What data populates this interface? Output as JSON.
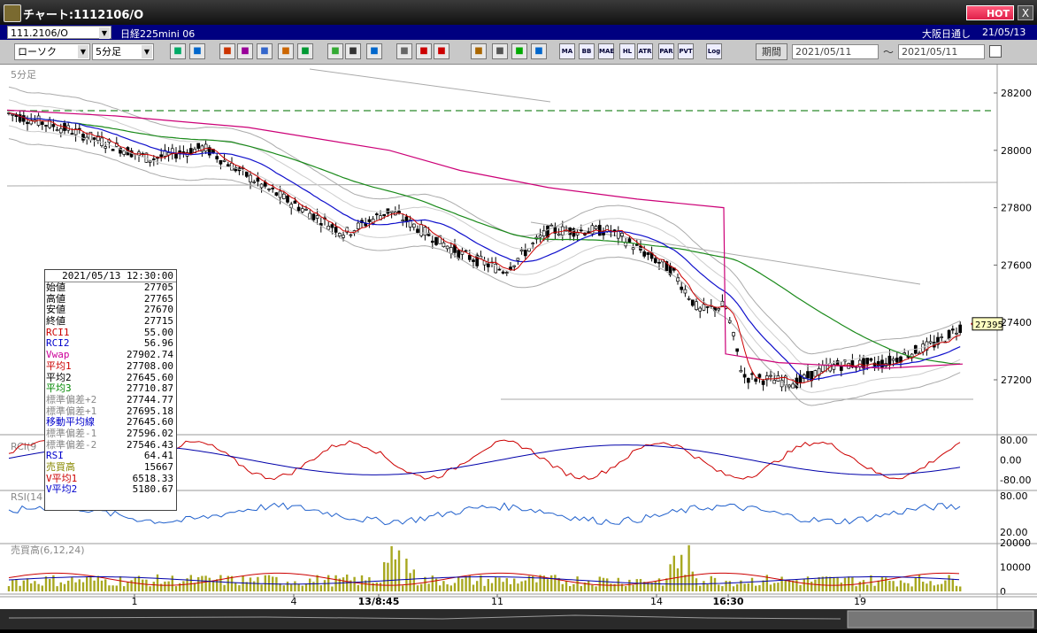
{
  "window": {
    "title": "チャート:1112106/O",
    "hot_label": "HOT",
    "close_label": "X"
  },
  "info": {
    "symbol": "111.2106/O",
    "instrument": "日経225mini 06",
    "session": "大阪日通し",
    "date": "21/05/13"
  },
  "toolbar": {
    "chart_type": "ローソク",
    "interval": "5分足",
    "icons": [
      "zoom-icon",
      "grid-icon",
      "download-icon",
      "scan-icon",
      "chart-icon",
      "bars-icon",
      "bookmark-icon",
      "draw-icon",
      "cursor-icon",
      "undo-icon",
      "candle-icon",
      "candle2-icon",
      "all-icon",
      "settings-icon",
      "wrench-icon",
      "palette-icon",
      "grid-settings-icon"
    ],
    "indicators": [
      "MA",
      "BB",
      "HL",
      "ATR",
      "PAR",
      "PVT",
      "Log"
    ],
    "period_label": "期間",
    "date_from": "2021/05/11",
    "date_to": "2021/05/11",
    "range_sep": "～"
  },
  "chart": {
    "main_label": "5分足",
    "price_ticks": [
      "28200",
      "28000",
      "27800",
      "27600",
      "27400",
      "27200"
    ],
    "current_price": "27395",
    "rci_label": "RCI(9",
    "rci_ticks": [
      "80.00",
      "0.00",
      "-80.00"
    ],
    "rsi_label": "RSI(14",
    "rsi_ticks": [
      "80.00",
      "20.00"
    ],
    "vol_label": "売買高(6,12,24)",
    "vol_ticks": [
      "20000",
      "10000",
      "0"
    ],
    "x_ticks": [
      "1",
      "4",
      "13/8:45",
      "11",
      "14",
      "16:30",
      "19"
    ]
  },
  "databox": {
    "datetime": "2021/05/13  12:30:00",
    "rows": [
      {
        "k": "始値",
        "v": "27705",
        "color": "#000000"
      },
      {
        "k": "高値",
        "v": "27765",
        "color": "#000000"
      },
      {
        "k": "安値",
        "v": "27670",
        "color": "#000000"
      },
      {
        "k": "終値",
        "v": "27715",
        "color": "#000000"
      },
      {
        "k": "RCI1",
        "v": "55.00",
        "color": "#cc0000"
      },
      {
        "k": "RCI2",
        "v": "56.96",
        "color": "#0000cc"
      },
      {
        "k": "Vwap",
        "v": "27902.74",
        "color": "#cc0099"
      },
      {
        "k": "平均1",
        "v": "27708.00",
        "color": "#cc0000"
      },
      {
        "k": "平均2",
        "v": "27645.60",
        "color": "#000000"
      },
      {
        "k": "平均3",
        "v": "27710.87",
        "color": "#008800"
      },
      {
        "k": "標準偏差+2",
        "v": "27744.77",
        "color": "#888888"
      },
      {
        "k": "標準偏差+1",
        "v": "27695.18",
        "color": "#888888"
      },
      {
        "k": "移動平均線",
        "v": "27645.60",
        "color": "#0000cc"
      },
      {
        "k": "標準偏差-1",
        "v": "27596.02",
        "color": "#888888"
      },
      {
        "k": "標準偏差-2",
        "v": "27546.43",
        "color": "#888888"
      },
      {
        "k": "RSI",
        "v": "64.41",
        "color": "#0000cc"
      },
      {
        "k": "売買高",
        "v": "15667",
        "color": "#888800"
      },
      {
        "k": "V平均1",
        "v": "6518.33",
        "color": "#cc0000"
      },
      {
        "k": "V平均2",
        "v": "5180.67",
        "color": "#0000cc"
      }
    ]
  }
}
